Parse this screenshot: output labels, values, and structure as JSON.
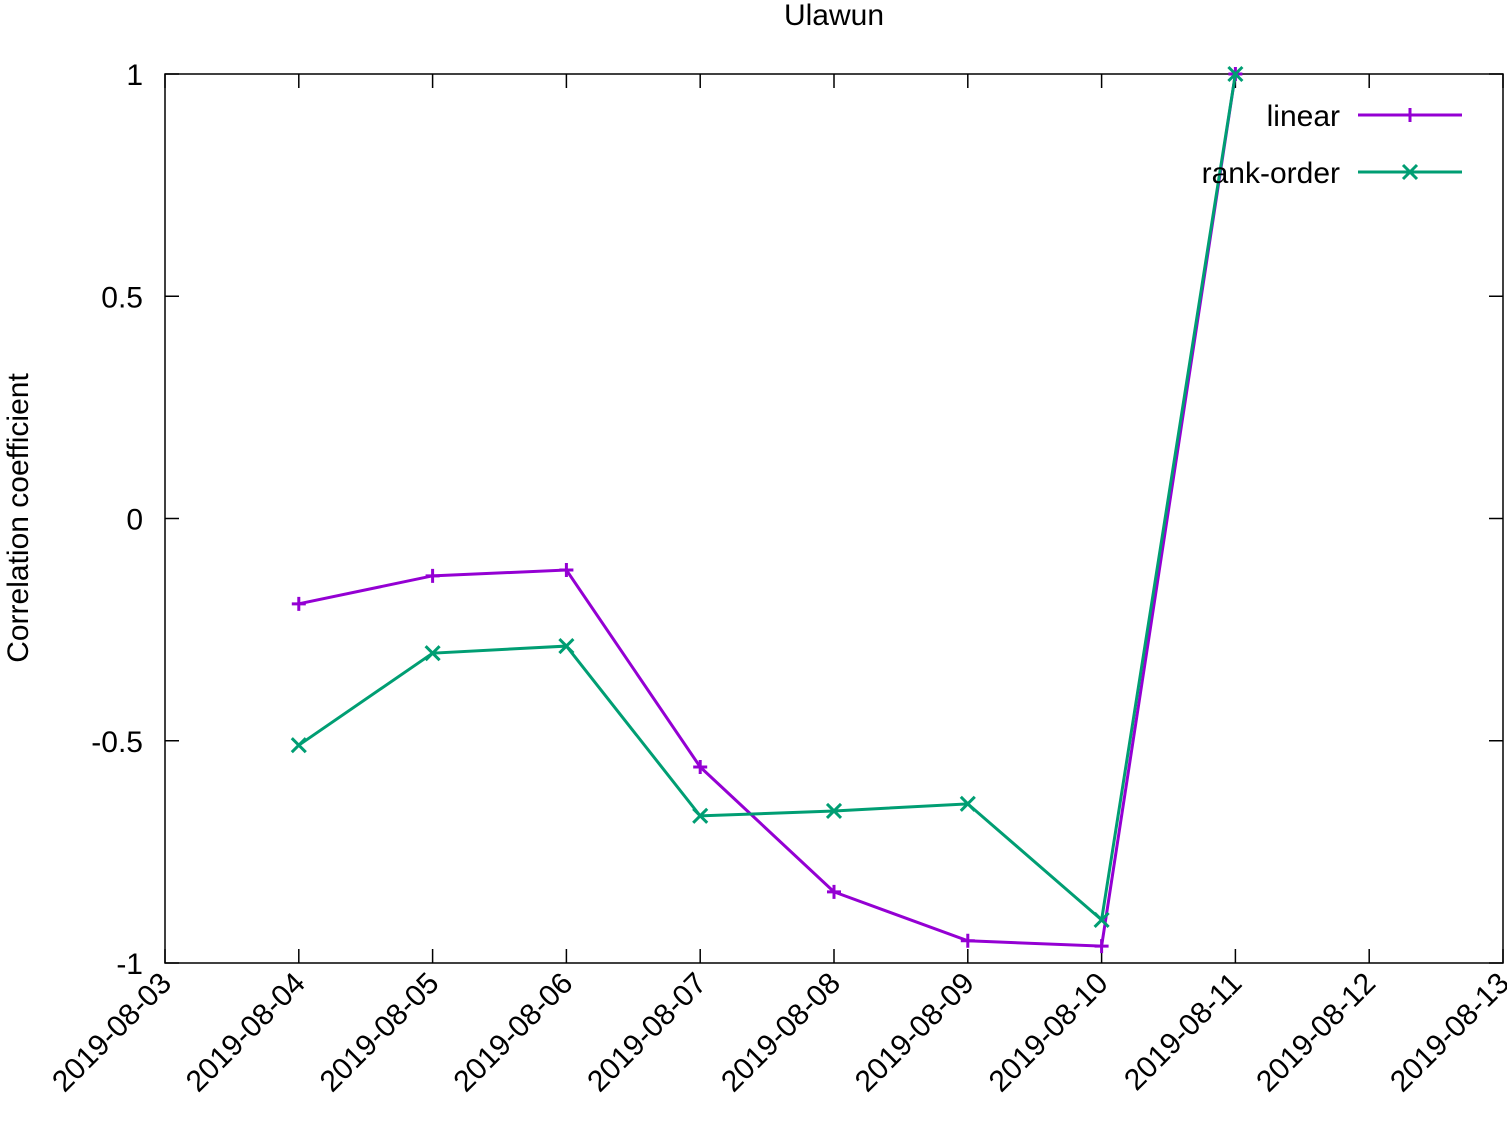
{
  "chart_data": {
    "type": "line",
    "title": "Ulawun",
    "y_label": "Correlation coefficient",
    "x": [
      "2019-08-04",
      "2019-08-05",
      "2019-08-06",
      "2019-08-07",
      "2019-08-08",
      "2019-08-09",
      "2019-08-10",
      "2019-08-11"
    ],
    "series": [
      {
        "name": "linear",
        "color": "#9400d3",
        "marker": "plus",
        "values": [
          -0.192,
          -0.129,
          -0.116,
          -0.559,
          -0.84,
          -0.95,
          -0.962,
          1
        ]
      },
      {
        "name": "rank-order",
        "color": "#009e73",
        "marker": "cross",
        "values": [
          -0.51,
          -0.303,
          -0.287,
          -0.669,
          -0.658,
          -0.642,
          -0.903,
          1
        ]
      }
    ],
    "xlim": [
      "2019-08-03",
      "2019-08-13"
    ],
    "xticks": [
      "2019-08-03",
      "2019-08-04",
      "2019-08-05",
      "2019-08-06",
      "2019-08-07",
      "2019-08-08",
      "2019-08-09",
      "2019-08-10",
      "2019-08-11",
      "2019-08-12",
      "2019-08-13"
    ],
    "ylim": [
      -1,
      1
    ],
    "yticks": [
      -1,
      -0.5,
      0,
      0.5,
      1
    ],
    "grid": false,
    "legend": "top-right"
  }
}
